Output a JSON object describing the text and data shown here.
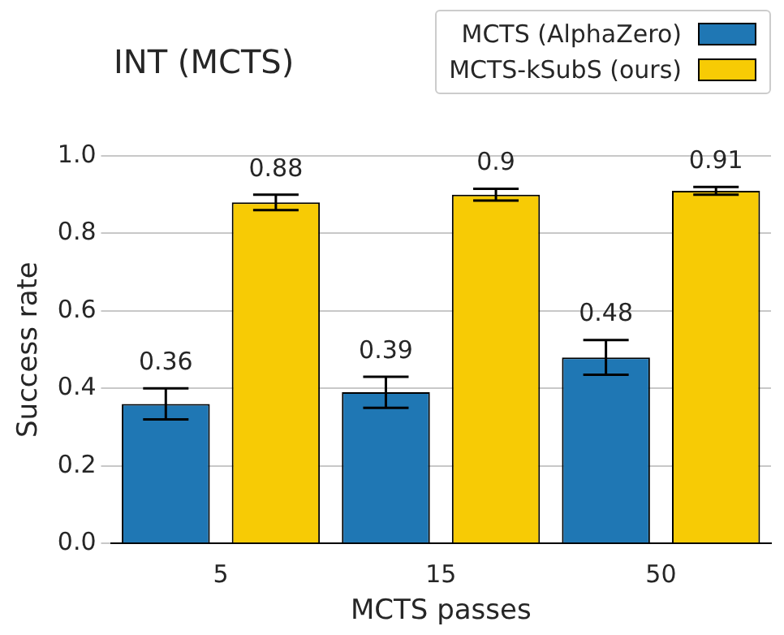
{
  "chart_data": {
    "type": "bar",
    "title": "INT (MCTS)",
    "xlabel": "MCTS passes",
    "ylabel": "Success rate",
    "categories": [
      "5",
      "15",
      "50"
    ],
    "series": [
      {
        "name": "MCTS (AlphaZero)",
        "color": "#1f77b4",
        "values": [
          0.36,
          0.39,
          0.48
        ],
        "errors": [
          0.04,
          0.04,
          0.045
        ]
      },
      {
        "name": "MCTS-kSubS (ours)",
        "color": "#f7cb05",
        "values": [
          0.88,
          0.9,
          0.91
        ],
        "errors": [
          0.02,
          0.015,
          0.01
        ]
      }
    ],
    "ylim": [
      0,
      1
    ],
    "yticks": [
      {
        "value": 0,
        "label": "0.0"
      },
      0.2,
      0.4,
      0.6,
      0.8,
      {
        "value": 1,
        "label": "1.0"
      }
    ],
    "grid": "y",
    "legend": "top right",
    "data_labels": true
  }
}
